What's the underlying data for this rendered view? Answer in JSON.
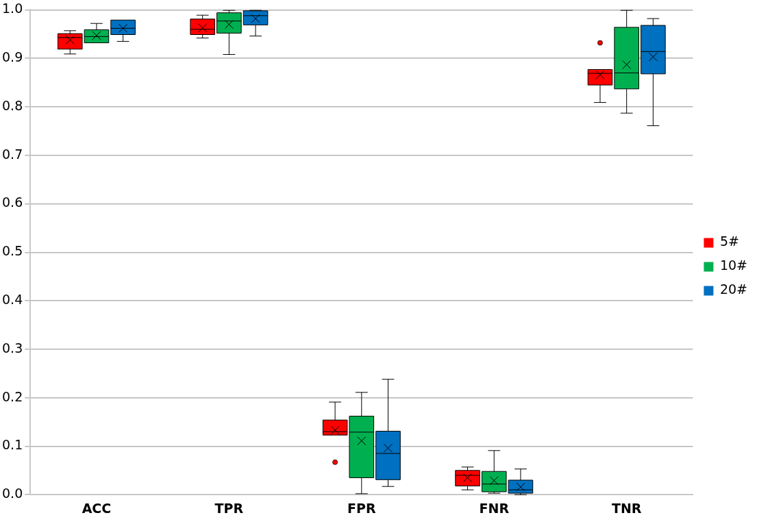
{
  "chart_data": {
    "type": "box",
    "categories": [
      "ACC",
      "TPR",
      "FPR",
      "FNR",
      "TNR"
    ],
    "series": [
      {
        "name": "5#",
        "color": "#ff0000",
        "boxes": [
          {
            "low": 0.909,
            "q1": 0.919,
            "median": 0.943,
            "q3": 0.951,
            "high": 0.957,
            "mean": 0.938
          },
          {
            "low": 0.942,
            "q1": 0.949,
            "median": 0.96,
            "q3": 0.981,
            "high": 0.989,
            "mean": 0.963
          },
          {
            "low": 0.123,
            "q1": 0.123,
            "median": 0.13,
            "q3": 0.154,
            "high": 0.191,
            "mean": 0.133,
            "outliers": [
              0.067
            ]
          },
          {
            "low": 0.01,
            "q1": 0.018,
            "median": 0.04,
            "q3": 0.05,
            "high": 0.057,
            "mean": 0.035
          },
          {
            "low": 0.809,
            "q1": 0.845,
            "median": 0.869,
            "q3": 0.877,
            "high": 0.877,
            "mean": 0.866,
            "outliers": [
              0.932
            ]
          }
        ]
      },
      {
        "name": "10#",
        "color": "#00b050",
        "boxes": [
          {
            "low": 0.932,
            "q1": 0.932,
            "median": 0.945,
            "q3": 0.959,
            "high": 0.972,
            "mean": 0.947
          },
          {
            "low": 0.908,
            "q1": 0.952,
            "median": 0.977,
            "q3": 0.994,
            "high": 0.999,
            "mean": 0.97
          },
          {
            "low": 0.002,
            "q1": 0.035,
            "median": 0.129,
            "q3": 0.162,
            "high": 0.211,
            "mean": 0.111
          },
          {
            "low": 0.003,
            "q1": 0.006,
            "median": 0.022,
            "q3": 0.048,
            "high": 0.091,
            "mean": 0.029
          },
          {
            "low": 0.787,
            "q1": 0.837,
            "median": 0.87,
            "q3": 0.964,
            "high": 0.999,
            "mean": 0.887
          }
        ]
      },
      {
        "name": "20#",
        "color": "#0070c0",
        "boxes": [
          {
            "low": 0.935,
            "q1": 0.949,
            "median": 0.962,
            "q3": 0.979,
            "high": 0.979,
            "mean": 0.962
          },
          {
            "low": 0.946,
            "q1": 0.969,
            "median": 0.988,
            "q3": 0.998,
            "high": 0.999,
            "mean": 0.982
          },
          {
            "low": 0.017,
            "q1": 0.031,
            "median": 0.085,
            "q3": 0.131,
            "high": 0.238,
            "mean": 0.096
          },
          {
            "low": 0,
            "q1": 0.003,
            "median": 0.01,
            "q3": 0.03,
            "high": 0.053,
            "mean": 0.016
          },
          {
            "low": 0.761,
            "q1": 0.868,
            "median": 0.914,
            "q3": 0.968,
            "high": 0.982,
            "mean": 0.903
          }
        ]
      }
    ],
    "ylim": [
      0,
      1
    ],
    "yticks": [
      {
        "value": 0,
        "label": "0.0"
      },
      0.1,
      0.2,
      0.3,
      0.4,
      0.5,
      0.6,
      0.7,
      0.8,
      0.9,
      {
        "value": 1,
        "label": "1.0"
      }
    ],
    "grid": "y",
    "legend": "right"
  }
}
